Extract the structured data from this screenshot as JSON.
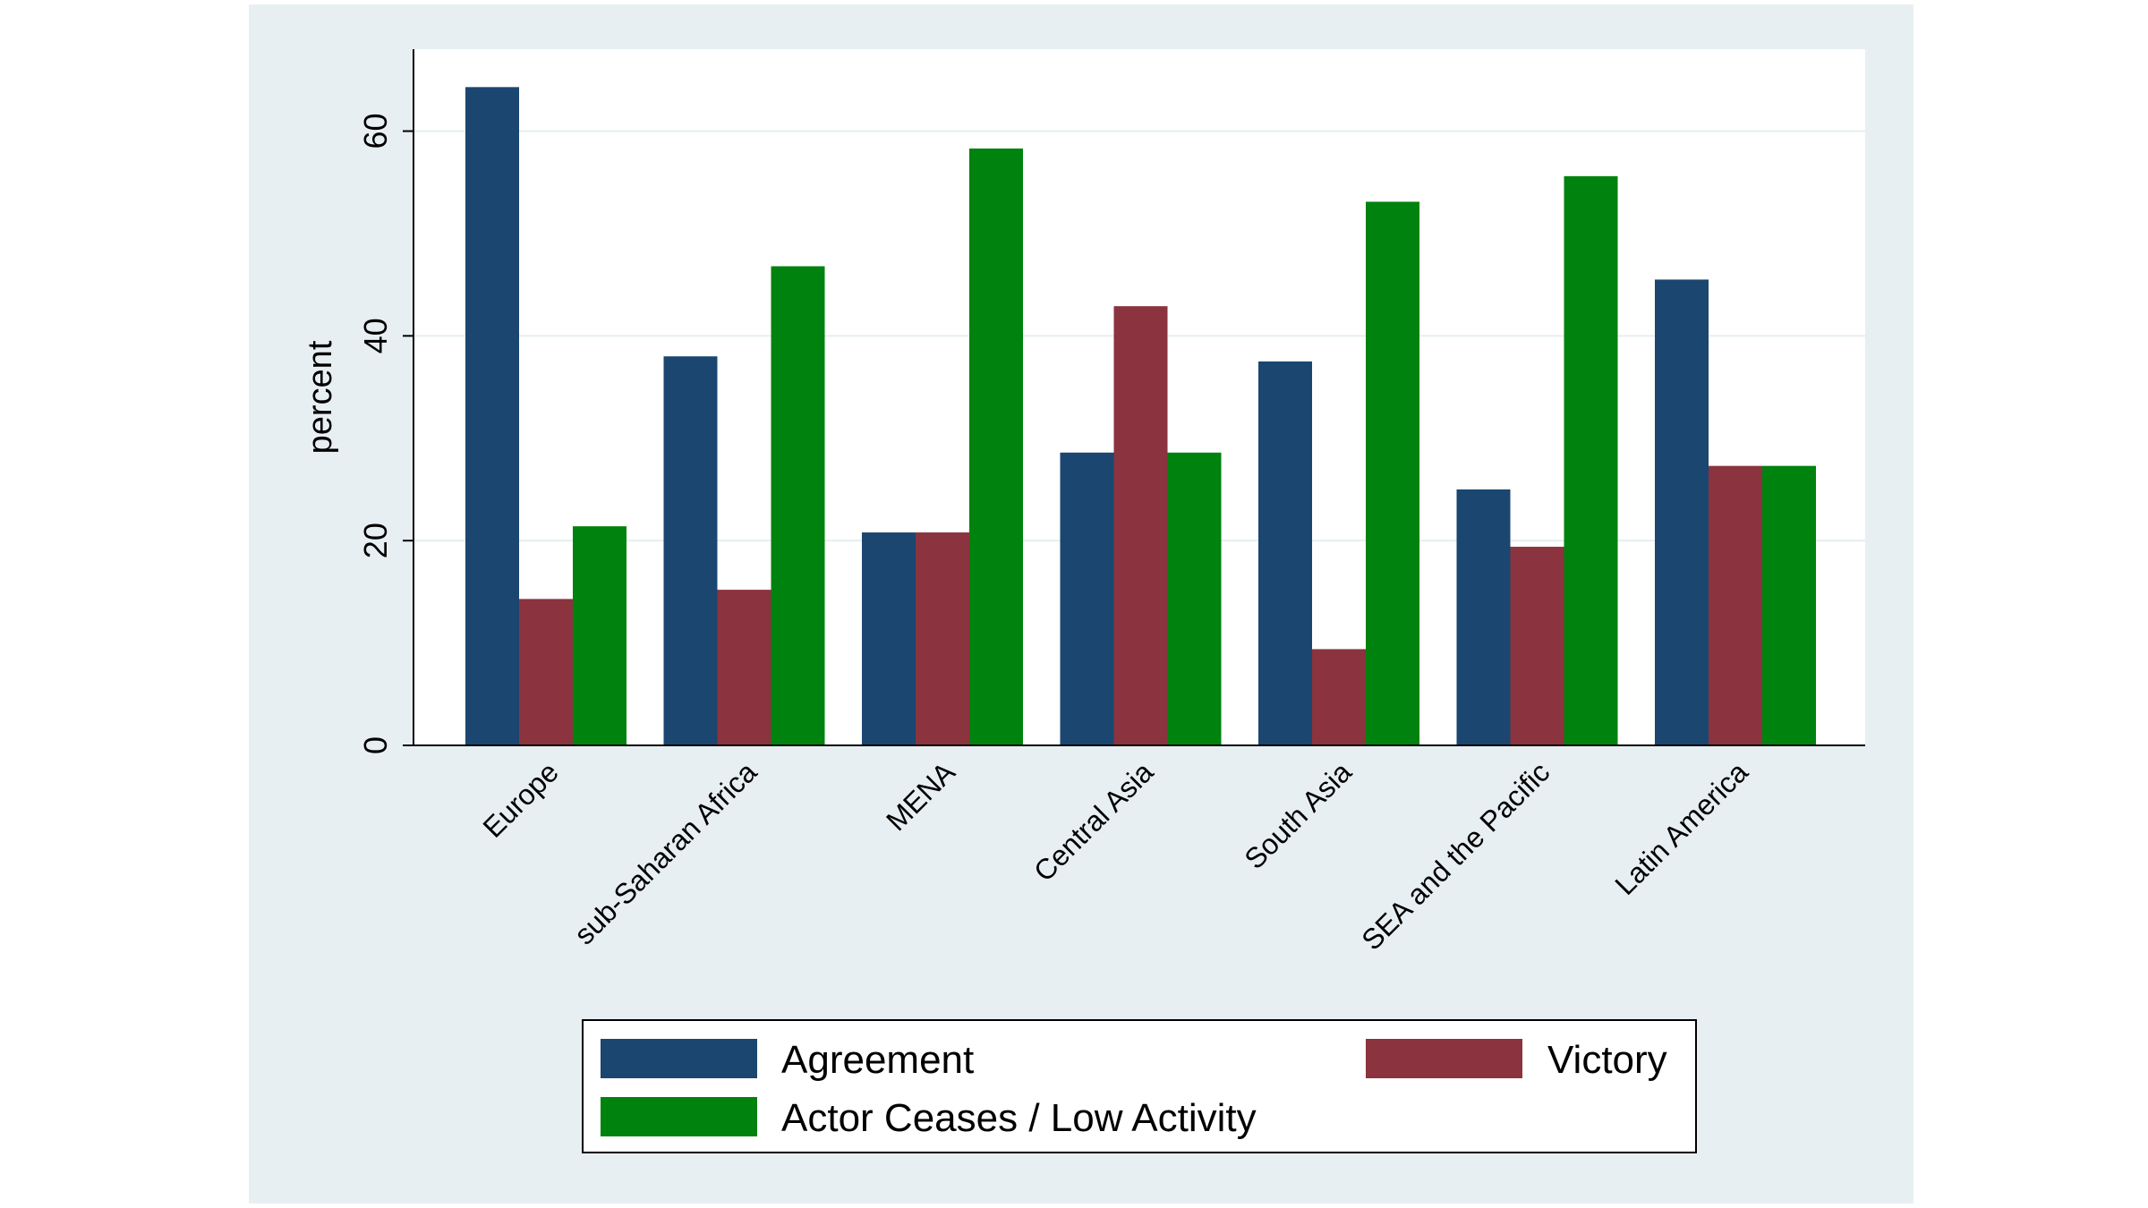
{
  "chart_data": {
    "type": "bar",
    "title": "",
    "xlabel": "",
    "ylabel": "percent",
    "ylim": [
      0,
      68
    ],
    "yticks": [
      0,
      20,
      40,
      60
    ],
    "grid": true,
    "legend_position": "bottom",
    "categories": [
      "Europe",
      "sub-Saharan Africa",
      "MENA",
      "Central Asia",
      "South Asia",
      "SEA and the Pacific",
      "Latin America"
    ],
    "series": [
      {
        "name": "Agreement",
        "color": "#1b4670",
        "values": [
          64.3,
          38.0,
          20.8,
          28.6,
          37.5,
          25.0,
          45.5
        ]
      },
      {
        "name": "Victory",
        "color": "#8b333e",
        "values": [
          14.3,
          15.2,
          20.8,
          42.9,
          9.4,
          19.4,
          27.3
        ]
      },
      {
        "name": "Actor Ceases / Low Activity",
        "color": "#00820e",
        "values": [
          21.4,
          46.8,
          58.3,
          28.6,
          53.1,
          55.6,
          27.3
        ]
      }
    ]
  }
}
